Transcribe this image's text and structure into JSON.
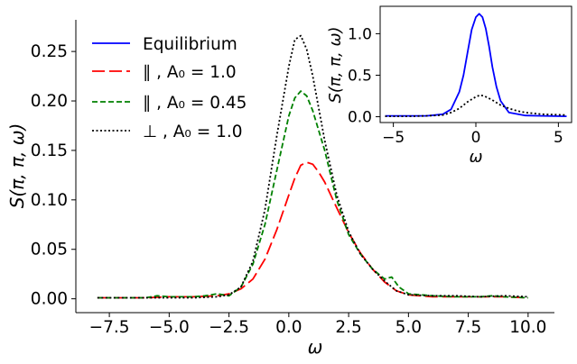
{
  "chart_data": [
    {
      "type": "line",
      "xlabel": "ω",
      "ylabel": "S(π, π, ω)",
      "xlim": [
        -8.9,
        11.1
      ],
      "ylim": [
        -0.014,
        0.282
      ],
      "xticks": [
        "−7.5",
        "−5.0",
        "−2.5",
        "0.0",
        "2.5",
        "5.0",
        "7.5",
        "10.0"
      ],
      "xtick_values": [
        -7.5,
        -5.0,
        -2.5,
        0.0,
        2.5,
        5.0,
        7.5,
        10.0
      ],
      "yticks": [
        "0.00",
        "0.05",
        "0.10",
        "0.15",
        "0.20",
        "0.25"
      ],
      "ytick_values": [
        0.0,
        0.05,
        0.1,
        0.15,
        0.2,
        0.25
      ],
      "grid": false,
      "legend_position": "top-left",
      "series": [
        {
          "name": "Equilibrium",
          "color": "#0000ff",
          "dash": "solid",
          "legend_only": true,
          "x": [],
          "y": []
        },
        {
          "name": "∥ , A₀ = 1.0",
          "color": "#ff0000",
          "dash": "long-dash",
          "x": [
            -8.0,
            -7.0,
            -6.0,
            -5.0,
            -4.0,
            -3.0,
            -2.5,
            -2.0,
            -1.5,
            -1.0,
            -0.5,
            0.0,
            0.25,
            0.5,
            0.75,
            1.0,
            1.25,
            1.5,
            2.0,
            2.5,
            3.0,
            3.5,
            4.0,
            4.5,
            5.0,
            6.0,
            7.0,
            8.0,
            9.0,
            10.0
          ],
          "y": [
            0.001,
            0.001,
            0.001,
            0.002,
            0.002,
            0.003,
            0.005,
            0.01,
            0.02,
            0.04,
            0.07,
            0.105,
            0.122,
            0.135,
            0.138,
            0.136,
            0.128,
            0.118,
            0.092,
            0.067,
            0.046,
            0.03,
            0.017,
            0.008,
            0.004,
            0.002,
            0.002,
            0.002,
            0.002,
            0.001
          ]
        },
        {
          "name": "∥ , A₀ = 0.45",
          "color": "#008000",
          "dash": "dash",
          "x": [
            -8.0,
            -7.0,
            -6.0,
            -5.5,
            -5.0,
            -4.5,
            -4.0,
            -3.5,
            -3.0,
            -2.5,
            -2.0,
            -1.5,
            -1.0,
            -0.5,
            0.0,
            0.25,
            0.5,
            0.75,
            1.0,
            1.5,
            2.0,
            2.5,
            3.0,
            3.5,
            4.0,
            4.3,
            4.6,
            5.0,
            6.0,
            7.0,
            8.0,
            8.5,
            9.0,
            10.0
          ],
          "y": [
            0.001,
            0.001,
            0.001,
            0.003,
            0.002,
            0.002,
            0.002,
            0.003,
            0.005,
            0.003,
            0.012,
            0.035,
            0.075,
            0.13,
            0.185,
            0.203,
            0.21,
            0.205,
            0.19,
            0.15,
            0.1,
            0.065,
            0.045,
            0.03,
            0.02,
            0.022,
            0.012,
            0.005,
            0.003,
            0.002,
            0.002,
            0.003,
            0.002,
            0.001
          ]
        },
        {
          "name": "⊥ , A₀ = 1.0",
          "color": "#000000",
          "dash": "dotted",
          "x": [
            -8.0,
            -7.0,
            -6.0,
            -5.0,
            -4.0,
            -3.0,
            -2.5,
            -2.0,
            -1.5,
            -1.0,
            -0.5,
            0.0,
            0.25,
            0.5,
            0.75,
            1.0,
            1.5,
            2.0,
            2.5,
            3.0,
            3.5,
            4.0,
            4.5,
            5.0,
            6.0,
            7.0,
            8.0,
            9.0,
            10.0
          ],
          "y": [
            0.001,
            0.001,
            0.001,
            0.001,
            0.001,
            0.002,
            0.004,
            0.012,
            0.038,
            0.09,
            0.165,
            0.235,
            0.262,
            0.266,
            0.252,
            0.225,
            0.16,
            0.105,
            0.068,
            0.045,
            0.03,
            0.018,
            0.008,
            0.004,
            0.003,
            0.003,
            0.002,
            0.003,
            0.002
          ]
        }
      ]
    },
    {
      "type": "line",
      "position": "inset-top-right",
      "xlabel": "ω",
      "ylabel": "S(π, π, ω)",
      "xlim": [
        -5.8,
        5.8
      ],
      "ylim": [
        -0.07,
        1.33
      ],
      "xticks": [
        "−5",
        "0",
        "5"
      ],
      "xtick_values": [
        -5,
        0,
        5
      ],
      "yticks": [
        "0.0",
        "0.5",
        "1.0"
      ],
      "ytick_values": [
        0.0,
        0.5,
        1.0
      ],
      "grid": false,
      "series": [
        {
          "name": "Equilibrium",
          "color": "#0000ff",
          "dash": "solid",
          "x": [
            -5.5,
            -4.0,
            -3.0,
            -2.0,
            -1.5,
            -1.0,
            -0.75,
            -0.5,
            -0.25,
            0.0,
            0.2,
            0.4,
            0.6,
            0.8,
            1.0,
            1.25,
            1.5,
            2.0,
            3.0,
            4.0,
            5.5
          ],
          "y": [
            0.01,
            0.01,
            0.01,
            0.03,
            0.09,
            0.3,
            0.5,
            0.78,
            1.05,
            1.2,
            1.24,
            1.2,
            1.06,
            0.85,
            0.6,
            0.36,
            0.19,
            0.05,
            0.015,
            0.01,
            0.005
          ]
        },
        {
          "name": "⊥ , A₀ = 1.0",
          "color": "#000000",
          "dash": "dotted",
          "x": [
            -5.5,
            -4.0,
            -3.0,
            -2.0,
            -1.5,
            -1.0,
            -0.5,
            0.0,
            0.25,
            0.5,
            1.0,
            1.5,
            2.0,
            2.5,
            3.0,
            4.0,
            5.5
          ],
          "y": [
            0.005,
            0.005,
            0.01,
            0.02,
            0.05,
            0.1,
            0.18,
            0.24,
            0.26,
            0.25,
            0.2,
            0.14,
            0.1,
            0.07,
            0.05,
            0.03,
            0.02
          ]
        }
      ]
    }
  ]
}
